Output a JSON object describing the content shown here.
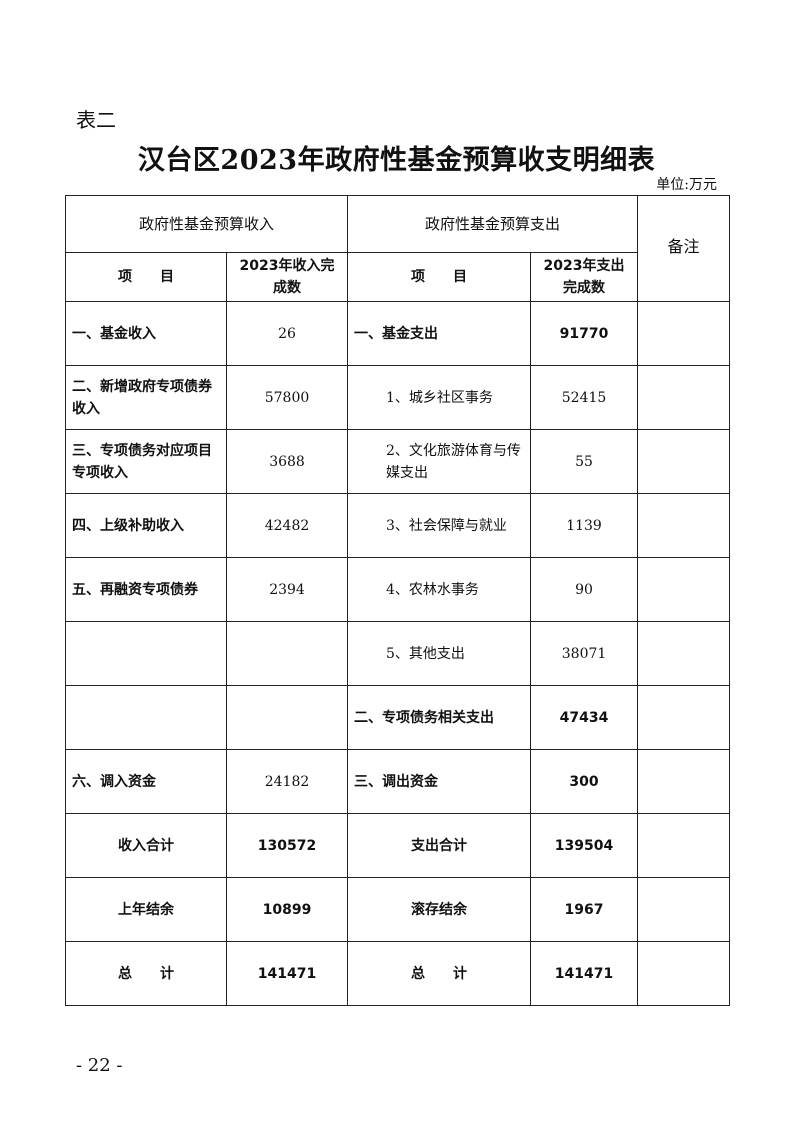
{
  "table_label": "表二",
  "title": "汉台区2023年政府性基金预算收支明细表",
  "unit": "单位:万元",
  "header": {
    "income_group": "政府性基金预算收入",
    "expense_group": "政府性基金预算支出",
    "remarks": "备注",
    "income_item": "项　　目",
    "income_value": "2023年收入完成数",
    "expense_item": "项　　目",
    "expense_value": "2023年支出完成数"
  },
  "rows": [
    {
      "income_item": "一、基金收入",
      "income_value": "26",
      "expense_item": "一、基金支出",
      "expense_value": "91770"
    },
    {
      "income_item": "二、新增政府专项债券收入",
      "income_value": "57800",
      "expense_item": "1、城乡社区事务",
      "expense_value": "52415",
      "sub": true
    },
    {
      "income_item": "三、专项债务对应项目专项收入",
      "income_value": "3688",
      "expense_item": "2、文化旅游体育与传媒支出",
      "expense_value": "55",
      "sub": true
    },
    {
      "income_item": "四、上级补助收入",
      "income_value": "42482",
      "expense_item": "3、社会保障与就业",
      "expense_value": "1139",
      "sub": true
    },
    {
      "income_item": "五、再融资专项债券",
      "income_value": "2394",
      "expense_item": "4、农林水事务",
      "expense_value": "90",
      "sub": true
    },
    {
      "income_item": "",
      "income_value": "",
      "expense_item": "5、其他支出",
      "expense_value": "38071",
      "sub": true
    },
    {
      "income_item": "",
      "income_value": "",
      "expense_item": "二、专项债务相关支出",
      "expense_value": "47434"
    },
    {
      "income_item": "六、调入资金",
      "income_value": "24182",
      "expense_item": "三、调出资金",
      "expense_value": "300"
    },
    {
      "income_item": "收入合计",
      "income_value": "130572",
      "expense_item": "支出合计",
      "expense_value": "139504",
      "total": true
    },
    {
      "income_item": "上年结余",
      "income_value": "10899",
      "expense_item": "滚存结余",
      "expense_value": "1967",
      "total": true
    },
    {
      "income_item": "总　　计",
      "income_value": "141471",
      "expense_item": "总　　计",
      "expense_value": "141471",
      "total": true
    }
  ],
  "page_number": "- 22 -"
}
